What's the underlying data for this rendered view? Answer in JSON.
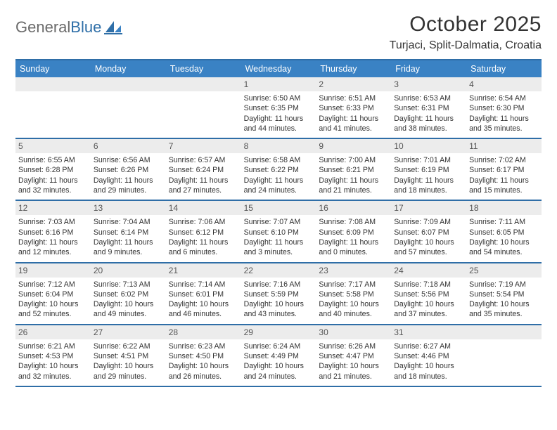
{
  "logo": {
    "text_general": "General",
    "text_blue": "Blue"
  },
  "title": "October 2025",
  "location": "Turjaci, Split-Dalmatia, Croatia",
  "colors": {
    "header_bg": "#3a82c4",
    "rule": "#2f6ea7",
    "daynum_bg": "#ececec",
    "text": "#333333",
    "logo_gray": "#6b6b6b",
    "logo_blue": "#2f6fa8"
  },
  "day_labels": [
    "Sunday",
    "Monday",
    "Tuesday",
    "Wednesday",
    "Thursday",
    "Friday",
    "Saturday"
  ],
  "weeks": [
    [
      {
        "n": "",
        "lines": []
      },
      {
        "n": "",
        "lines": []
      },
      {
        "n": "",
        "lines": []
      },
      {
        "n": "1",
        "lines": [
          "Sunrise: 6:50 AM",
          "Sunset: 6:35 PM",
          "Daylight: 11 hours",
          "and 44 minutes."
        ]
      },
      {
        "n": "2",
        "lines": [
          "Sunrise: 6:51 AM",
          "Sunset: 6:33 PM",
          "Daylight: 11 hours",
          "and 41 minutes."
        ]
      },
      {
        "n": "3",
        "lines": [
          "Sunrise: 6:53 AM",
          "Sunset: 6:31 PM",
          "Daylight: 11 hours",
          "and 38 minutes."
        ]
      },
      {
        "n": "4",
        "lines": [
          "Sunrise: 6:54 AM",
          "Sunset: 6:30 PM",
          "Daylight: 11 hours",
          "and 35 minutes."
        ]
      }
    ],
    [
      {
        "n": "5",
        "lines": [
          "Sunrise: 6:55 AM",
          "Sunset: 6:28 PM",
          "Daylight: 11 hours",
          "and 32 minutes."
        ]
      },
      {
        "n": "6",
        "lines": [
          "Sunrise: 6:56 AM",
          "Sunset: 6:26 PM",
          "Daylight: 11 hours",
          "and 29 minutes."
        ]
      },
      {
        "n": "7",
        "lines": [
          "Sunrise: 6:57 AM",
          "Sunset: 6:24 PM",
          "Daylight: 11 hours",
          "and 27 minutes."
        ]
      },
      {
        "n": "8",
        "lines": [
          "Sunrise: 6:58 AM",
          "Sunset: 6:22 PM",
          "Daylight: 11 hours",
          "and 24 minutes."
        ]
      },
      {
        "n": "9",
        "lines": [
          "Sunrise: 7:00 AM",
          "Sunset: 6:21 PM",
          "Daylight: 11 hours",
          "and 21 minutes."
        ]
      },
      {
        "n": "10",
        "lines": [
          "Sunrise: 7:01 AM",
          "Sunset: 6:19 PM",
          "Daylight: 11 hours",
          "and 18 minutes."
        ]
      },
      {
        "n": "11",
        "lines": [
          "Sunrise: 7:02 AM",
          "Sunset: 6:17 PM",
          "Daylight: 11 hours",
          "and 15 minutes."
        ]
      }
    ],
    [
      {
        "n": "12",
        "lines": [
          "Sunrise: 7:03 AM",
          "Sunset: 6:16 PM",
          "Daylight: 11 hours",
          "and 12 minutes."
        ]
      },
      {
        "n": "13",
        "lines": [
          "Sunrise: 7:04 AM",
          "Sunset: 6:14 PM",
          "Daylight: 11 hours",
          "and 9 minutes."
        ]
      },
      {
        "n": "14",
        "lines": [
          "Sunrise: 7:06 AM",
          "Sunset: 6:12 PM",
          "Daylight: 11 hours",
          "and 6 minutes."
        ]
      },
      {
        "n": "15",
        "lines": [
          "Sunrise: 7:07 AM",
          "Sunset: 6:10 PM",
          "Daylight: 11 hours",
          "and 3 minutes."
        ]
      },
      {
        "n": "16",
        "lines": [
          "Sunrise: 7:08 AM",
          "Sunset: 6:09 PM",
          "Daylight: 11 hours",
          "and 0 minutes."
        ]
      },
      {
        "n": "17",
        "lines": [
          "Sunrise: 7:09 AM",
          "Sunset: 6:07 PM",
          "Daylight: 10 hours",
          "and 57 minutes."
        ]
      },
      {
        "n": "18",
        "lines": [
          "Sunrise: 7:11 AM",
          "Sunset: 6:05 PM",
          "Daylight: 10 hours",
          "and 54 minutes."
        ]
      }
    ],
    [
      {
        "n": "19",
        "lines": [
          "Sunrise: 7:12 AM",
          "Sunset: 6:04 PM",
          "Daylight: 10 hours",
          "and 52 minutes."
        ]
      },
      {
        "n": "20",
        "lines": [
          "Sunrise: 7:13 AM",
          "Sunset: 6:02 PM",
          "Daylight: 10 hours",
          "and 49 minutes."
        ]
      },
      {
        "n": "21",
        "lines": [
          "Sunrise: 7:14 AM",
          "Sunset: 6:01 PM",
          "Daylight: 10 hours",
          "and 46 minutes."
        ]
      },
      {
        "n": "22",
        "lines": [
          "Sunrise: 7:16 AM",
          "Sunset: 5:59 PM",
          "Daylight: 10 hours",
          "and 43 minutes."
        ]
      },
      {
        "n": "23",
        "lines": [
          "Sunrise: 7:17 AM",
          "Sunset: 5:58 PM",
          "Daylight: 10 hours",
          "and 40 minutes."
        ]
      },
      {
        "n": "24",
        "lines": [
          "Sunrise: 7:18 AM",
          "Sunset: 5:56 PM",
          "Daylight: 10 hours",
          "and 37 minutes."
        ]
      },
      {
        "n": "25",
        "lines": [
          "Sunrise: 7:19 AM",
          "Sunset: 5:54 PM",
          "Daylight: 10 hours",
          "and 35 minutes."
        ]
      }
    ],
    [
      {
        "n": "26",
        "lines": [
          "Sunrise: 6:21 AM",
          "Sunset: 4:53 PM",
          "Daylight: 10 hours",
          "and 32 minutes."
        ]
      },
      {
        "n": "27",
        "lines": [
          "Sunrise: 6:22 AM",
          "Sunset: 4:51 PM",
          "Daylight: 10 hours",
          "and 29 minutes."
        ]
      },
      {
        "n": "28",
        "lines": [
          "Sunrise: 6:23 AM",
          "Sunset: 4:50 PM",
          "Daylight: 10 hours",
          "and 26 minutes."
        ]
      },
      {
        "n": "29",
        "lines": [
          "Sunrise: 6:24 AM",
          "Sunset: 4:49 PM",
          "Daylight: 10 hours",
          "and 24 minutes."
        ]
      },
      {
        "n": "30",
        "lines": [
          "Sunrise: 6:26 AM",
          "Sunset: 4:47 PM",
          "Daylight: 10 hours",
          "and 21 minutes."
        ]
      },
      {
        "n": "31",
        "lines": [
          "Sunrise: 6:27 AM",
          "Sunset: 4:46 PM",
          "Daylight: 10 hours",
          "and 18 minutes."
        ]
      },
      {
        "n": "",
        "lines": []
      }
    ]
  ]
}
